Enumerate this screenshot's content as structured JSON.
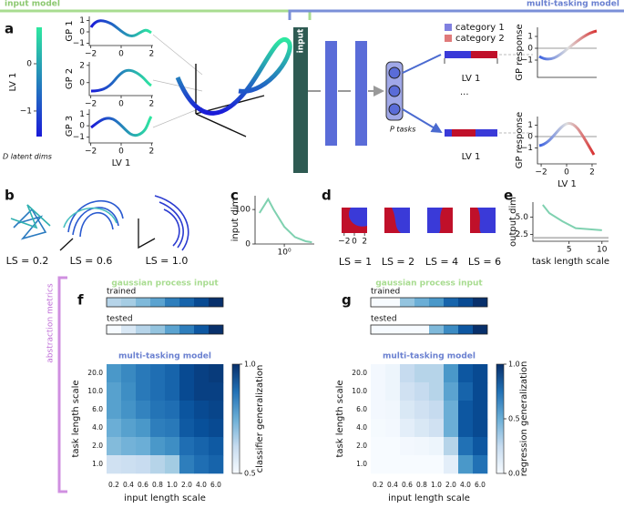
{
  "header": {
    "input_model": "input model",
    "multitasking_model": "multi-tasking model"
  },
  "panel_a": {
    "letter": "a",
    "latent": {
      "label": "LV 1",
      "ylim": [
        -1.54,
        0.77
      ],
      "yticks": [
        0,
        {
          "value": -1,
          "label": "−1"
        }
      ],
      "caption": "D latent dims"
    },
    "gp_plots": [
      {
        "ylabel": "GP 1",
        "xlim": [
          -2.1,
          2.1
        ],
        "xticks": [
          {
            "value": -2,
            "label": "−2"
          },
          0,
          2
        ],
        "ylim": [
          -1.2,
          1.36
        ],
        "yticks": [
          1,
          0,
          {
            "value": -1,
            "label": "−1"
          }
        ]
      },
      {
        "ylabel": "GP 2",
        "xlim": [
          -2.1,
          2.1
        ],
        "xticks": [
          {
            "value": -2,
            "label": "−2"
          },
          0,
          2
        ],
        "ylim": [
          -1.5,
          2.4
        ],
        "yticks": [
          2,
          0
        ]
      },
      {
        "ylabel": "GP 3",
        "xlim": [
          -2.1,
          2.1
        ],
        "xticks": [
          {
            "value": -2,
            "label": "−2"
          },
          0,
          2
        ],
        "ylim": [
          -1.5,
          1.44
        ],
        "yticks": [
          1,
          0,
          {
            "value": -1,
            "label": "−1"
          }
        ],
        "xlabel": "LV 1"
      }
    ],
    "input_block": "input",
    "p_tasks": "P tasks",
    "legend": [
      {
        "name": "category 1",
        "color": "#8080e0"
      },
      {
        "name": "category 2",
        "color": "#e07a7a"
      }
    ],
    "task_outputs": [
      {
        "xlabel": "LV 1"
      },
      {
        "xlabel": "LV 1"
      }
    ],
    "ellipsis": "...",
    "responses": [
      {
        "ylabel": "GP response",
        "ylim": [
          -2.46,
          1.77
        ],
        "yticks": [
          1,
          0,
          {
            "value": -1,
            "label": "−1"
          }
        ]
      },
      {
        "ylabel": "GP response",
        "ylim": [
          -2.4,
          1.76
        ],
        "yticks": [
          1,
          0,
          {
            "value": -1,
            "label": "−1"
          }
        ],
        "xlim": [
          -2.29,
          2.36
        ],
        "xticks": [
          {
            "value": -2,
            "label": "−2"
          },
          0,
          2
        ],
        "xlabel": "LV 1"
      }
    ]
  },
  "panel_b": {
    "letter": "b",
    "labels": [
      "LS = 0.2",
      "LS = 0.6",
      "LS = 1.0"
    ]
  },
  "panel_c": {
    "letter": "c",
    "type": "line",
    "ylabel": "input dim",
    "x": [
      0.2,
      0.35,
      0.5,
      1,
      2,
      4,
      6
    ],
    "values": [
      90,
      130,
      100,
      50,
      20,
      8,
      5
    ],
    "log_x": true,
    "xlim": [
      0.15,
      7
    ],
    "xticks": [
      {
        "value": 1,
        "label": "10⁰"
      }
    ],
    "ylim": [
      0,
      140
    ],
    "yticks": [
      0,
      100
    ],
    "color": "#7fd1b0"
  },
  "panel_d": {
    "letter": "d",
    "xlim": [
      -2.5,
      2.5
    ],
    "xticks": [
      {
        "value": -2,
        "label": "−2"
      },
      0,
      2
    ],
    "labels": [
      "LS = 1",
      "LS = 2",
      "LS = 4",
      "LS = 6"
    ]
  },
  "panel_e": {
    "letter": "e",
    "type": "line",
    "ylabel": "output dim",
    "xlabel": "task length scale",
    "x": [
      1,
      2,
      4,
      6,
      10
    ],
    "values": [
      6.8,
      5.6,
      4.4,
      3.4,
      3.1
    ],
    "xlim": [
      -0.5,
      11
    ],
    "xticks": [
      5,
      10
    ],
    "ylim": [
      1.5,
      7.2
    ],
    "yticks": [
      {
        "value": 2.5,
        "label": "2.5"
      },
      {
        "value": 5,
        "label": "5.0"
      }
    ],
    "baseline": 2.0,
    "color": "#7fd1b0"
  },
  "metrics_label": "abstraction metrics",
  "panel_f": {
    "letter": "f",
    "input_title": "gaussian process input",
    "model_title": "multi-tasking model",
    "trained": {
      "label": "trained",
      "values": [
        0.3,
        0.35,
        0.45,
        0.55,
        0.7,
        0.8,
        0.9,
        1.0
      ]
    },
    "tested": {
      "label": "tested",
      "values": [
        0.0,
        0.15,
        0.3,
        0.4,
        0.55,
        0.7,
        0.85,
        1.0
      ]
    },
    "x_categories": [
      "0.2",
      "0.4",
      "0.6",
      "0.8",
      "1.0",
      "2.0",
      "4.0",
      "6.0"
    ],
    "y_categories": [
      "20.0",
      "10.0",
      "6.0",
      "4.0",
      "2.0",
      "1.0"
    ],
    "values": [
      [
        0.8,
        0.83,
        0.86,
        0.88,
        0.9,
        0.95,
        0.97,
        0.98
      ],
      [
        0.78,
        0.82,
        0.86,
        0.88,
        0.9,
        0.95,
        0.97,
        0.97
      ],
      [
        0.78,
        0.81,
        0.84,
        0.87,
        0.88,
        0.93,
        0.95,
        0.96
      ],
      [
        0.75,
        0.78,
        0.8,
        0.85,
        0.86,
        0.92,
        0.94,
        0.95
      ],
      [
        0.72,
        0.74,
        0.75,
        0.8,
        0.82,
        0.88,
        0.9,
        0.92
      ],
      [
        0.6,
        0.61,
        0.62,
        0.65,
        0.68,
        0.85,
        0.88,
        0.9
      ]
    ],
    "clim": [
      0.5,
      1.0
    ],
    "cticks": [
      {
        "value": 0.5,
        "label": "0.5"
      },
      {
        "value": 1,
        "label": "1.0"
      }
    ],
    "colorbar_label": "classifier generalization",
    "xlabel": "input length scale",
    "ylabel": "task length scale"
  },
  "panel_g": {
    "letter": "g",
    "input_title": "gaussian process input",
    "model_title": "multi-tasking model",
    "trained": {
      "label": "trained",
      "values": [
        0.0,
        0.0,
        0.4,
        0.5,
        0.6,
        0.8,
        0.9,
        1.0
      ]
    },
    "tested": {
      "label": "tested",
      "values": [
        0.0,
        0.0,
        0.0,
        0.0,
        0.45,
        0.65,
        0.85,
        1.0
      ]
    },
    "x_categories": [
      "0.2",
      "0.4",
      "0.6",
      "0.8",
      "1.0",
      "2.0",
      "4.0",
      "6.0"
    ],
    "y_categories": [
      "20.0",
      "10.0",
      "6.0",
      "4.0",
      "2.0",
      "1.0"
    ],
    "values": [
      [
        0.02,
        0.05,
        0.25,
        0.3,
        0.3,
        0.6,
        0.85,
        0.9
      ],
      [
        0.02,
        0.05,
        0.2,
        0.25,
        0.3,
        0.55,
        0.8,
        0.9
      ],
      [
        0.02,
        0.03,
        0.15,
        0.2,
        0.25,
        0.5,
        0.85,
        0.9
      ],
      [
        0.01,
        0.02,
        0.1,
        0.15,
        0.2,
        0.5,
        0.85,
        0.9
      ],
      [
        0.0,
        0.0,
        0.02,
        0.03,
        0.05,
        0.3,
        0.75,
        0.85
      ],
      [
        0.0,
        0.0,
        0.0,
        0.0,
        0.0,
        0.1,
        0.6,
        0.75
      ]
    ],
    "clim": [
      0.0,
      1.0
    ],
    "cticks": [
      {
        "value": 0,
        "label": "0.0"
      },
      {
        "value": 0.5,
        "label": "0.5"
      },
      {
        "value": 1,
        "label": "1.0"
      }
    ],
    "colorbar_label": "regression generalization",
    "xlabel": "input length scale",
    "ylabel": "task length scale"
  }
}
